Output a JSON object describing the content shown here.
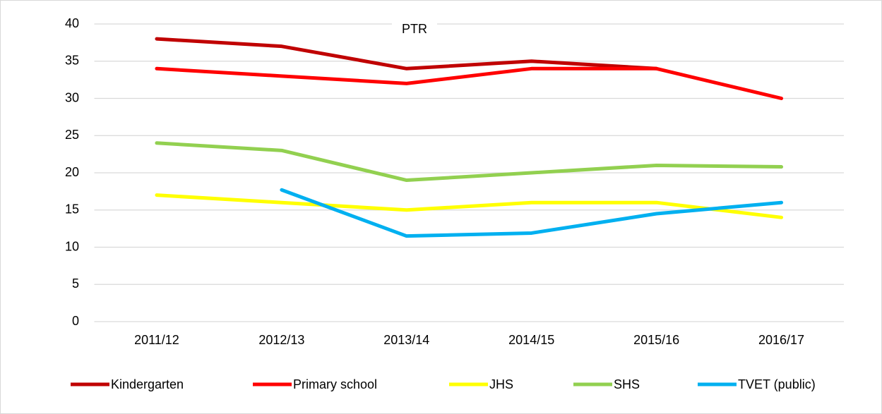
{
  "chart_data": {
    "type": "line",
    "title": "PTR",
    "categories": [
      "2011/12",
      "2012/13",
      "2013/14",
      "2014/15",
      "2015/16",
      "2016/17"
    ],
    "series": [
      {
        "name": "Kindergarten",
        "color": "#c00000",
        "values": [
          38,
          37,
          34,
          35,
          34,
          null
        ]
      },
      {
        "name": "Primary school",
        "color": "#ff0000",
        "values": [
          34,
          33,
          32,
          34,
          34,
          30
        ]
      },
      {
        "name": "JHS",
        "color": "#ffff00",
        "values": [
          17,
          16,
          15,
          16,
          16,
          14
        ]
      },
      {
        "name": "SHS",
        "color": "#92d050",
        "values": [
          24,
          23,
          19,
          20,
          21,
          20.8
        ]
      },
      {
        "name": "TVET (public)",
        "color": "#00b0f0",
        "values": [
          null,
          17.7,
          11.5,
          11.9,
          14.5,
          16
        ]
      }
    ],
    "ylim": [
      0,
      40
    ],
    "yticks": [
      0,
      5,
      10,
      15,
      20,
      25,
      30,
      35,
      40
    ],
    "grid": true,
    "legend": "bottom"
  }
}
